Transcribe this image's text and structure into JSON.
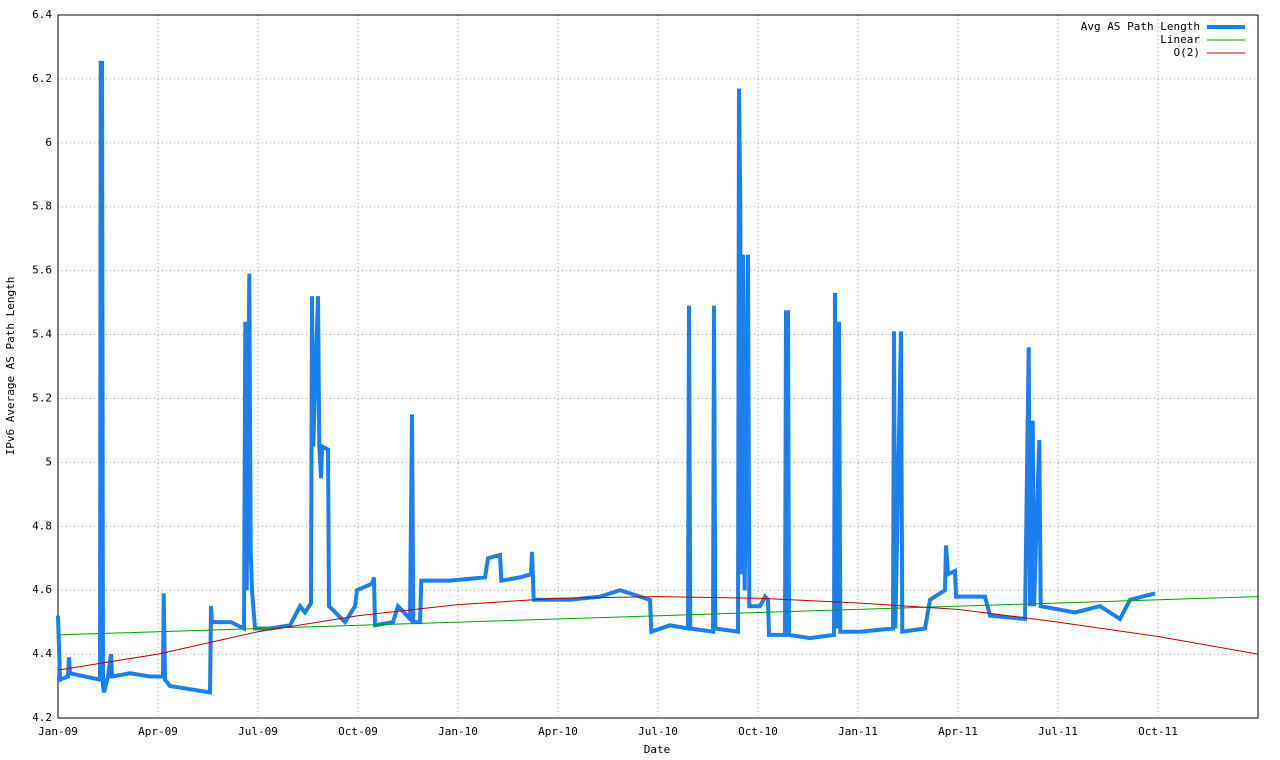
{
  "chart_data": {
    "type": "line",
    "xlabel": "Date",
    "ylabel": "IPv6 Average AS Path Length",
    "xlim": [
      0,
      36
    ],
    "ylim": [
      4.2,
      6.4
    ],
    "xticks": [
      {
        "value": 0,
        "label": "Jan-09"
      },
      {
        "value": 3,
        "label": "Apr-09"
      },
      {
        "value": 6,
        "label": "Jul-09"
      },
      {
        "value": 9,
        "label": "Oct-09"
      },
      {
        "value": 12,
        "label": "Jan-10"
      },
      {
        "value": 15,
        "label": "Apr-10"
      },
      {
        "value": 18,
        "label": "Jul-10"
      },
      {
        "value": 21,
        "label": "Oct-10"
      },
      {
        "value": 24,
        "label": "Jan-11"
      },
      {
        "value": 27,
        "label": "Apr-11"
      },
      {
        "value": 30,
        "label": "Jul-11"
      },
      {
        "value": 33,
        "label": "Oct-11"
      }
    ],
    "yticks": [
      4.2,
      4.4,
      4.6,
      4.8,
      5,
      5.2,
      5.4,
      5.6,
      5.8,
      6,
      6.2,
      6.4
    ],
    "grid": true,
    "legend": "top-right",
    "series": [
      {
        "name": "Avg AS Path Length",
        "color": "#1a80f0",
        "width": 4,
        "x": [
          0,
          0.06,
          0.3,
          0.33,
          0.36,
          1.26,
          1.28,
          1.32,
          1.35,
          1.38,
          1.5,
          1.59,
          1.62,
          2.16,
          2.76,
          3.15,
          3.17,
          3.21,
          3.36,
          3.96,
          4.56,
          4.59,
          4.62,
          5.19,
          5.58,
          5.62,
          5.66,
          5.74,
          5.78,
          5.82,
          5.91,
          6.36,
          6.96,
          7.26,
          7.41,
          7.59,
          7.62,
          7.66,
          7.8,
          7.84,
          7.89,
          7.92,
          8.1,
          8.13,
          8.61,
          8.91,
          8.97,
          9.42,
          9.48,
          9.51,
          10.05,
          10.2,
          10.56,
          10.62,
          10.66,
          10.86,
          10.9,
          11.76,
          12.81,
          12.9,
          13.26,
          13.3,
          13.86,
          14.19,
          14.22,
          14.27,
          15.36,
          16.26,
          16.86,
          17.46,
          17.76,
          17.8,
          18.36,
          18.9,
          18.93,
          18.97,
          19.65,
          19.68,
          19.72,
          20.4,
          20.43,
          20.47,
          20.5,
          20.55,
          20.6,
          20.7,
          20.74,
          21.06,
          21.21,
          21.3,
          21.33,
          21.81,
          21.84,
          21.9,
          21.93,
          22.56,
          23.28,
          23.31,
          23.35,
          23.43,
          23.47,
          24.06,
          25.05,
          25.08,
          25.12,
          25.29,
          25.33,
          26.01,
          26.16,
          26.61,
          26.64,
          26.7,
          26.91,
          26.94,
          27.81,
          27.96,
          29.01,
          29.12,
          29.16,
          29.24,
          29.28,
          29.44,
          29.48,
          30.51,
          31.26,
          31.86,
          32.16,
          32.91
        ],
        "values": [
          4.52,
          4.32,
          4.33,
          4.39,
          4.34,
          4.32,
          6.25,
          6.25,
          4.3,
          4.28,
          4.33,
          4.4,
          4.33,
          4.34,
          4.33,
          4.33,
          4.59,
          4.32,
          4.3,
          4.29,
          4.28,
          4.55,
          4.5,
          4.5,
          4.48,
          5.44,
          4.6,
          5.59,
          4.72,
          4.6,
          4.48,
          4.48,
          4.49,
          4.55,
          4.53,
          4.56,
          5.52,
          5.05,
          5.52,
          5.05,
          4.95,
          5.05,
          5.04,
          4.55,
          4.5,
          4.55,
          4.6,
          4.62,
          4.64,
          4.49,
          4.5,
          4.55,
          4.51,
          5.15,
          4.5,
          4.5,
          4.63,
          4.63,
          4.64,
          4.7,
          4.71,
          4.63,
          4.64,
          4.65,
          4.72,
          4.57,
          4.57,
          4.58,
          4.6,
          4.58,
          4.57,
          4.47,
          4.49,
          4.48,
          5.49,
          4.48,
          4.47,
          5.49,
          4.48,
          4.47,
          6.17,
          5.8,
          4.65,
          5.65,
          4.6,
          5.65,
          4.55,
          4.55,
          4.58,
          4.57,
          4.46,
          4.46,
          5.47,
          5.47,
          4.46,
          4.45,
          4.46,
          5.53,
          4.48,
          5.44,
          4.47,
          4.47,
          4.48,
          5.41,
          4.48,
          5.41,
          4.47,
          4.48,
          4.57,
          4.6,
          4.74,
          4.65,
          4.66,
          4.58,
          4.58,
          4.52,
          4.51,
          5.36,
          4.55,
          5.13,
          4.55,
          5.07,
          4.55,
          4.53,
          4.55,
          4.51,
          4.57,
          4.59
        ]
      },
      {
        "name": "Linear",
        "color": "#00a000",
        "width": 1,
        "x": [
          0,
          36
        ],
        "values": [
          4.46,
          4.58
        ]
      },
      {
        "name": "O(2)",
        "color": "#c00000",
        "width": 1,
        "x": [
          0,
          3,
          6,
          9,
          12,
          15,
          18,
          21,
          24,
          27,
          30,
          33,
          36
        ],
        "values": [
          4.35,
          4.4,
          4.47,
          4.52,
          4.555,
          4.575,
          4.58,
          4.575,
          4.56,
          4.54,
          4.5,
          4.455,
          4.4
        ]
      }
    ]
  }
}
